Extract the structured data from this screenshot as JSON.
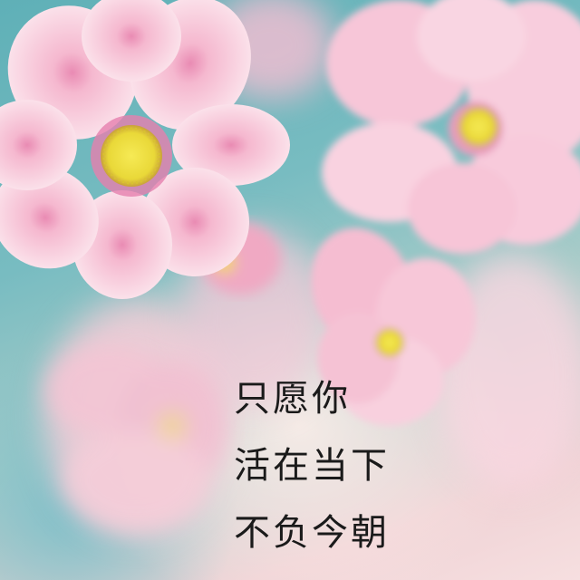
{
  "caption": {
    "lines": [
      "只愿你",
      "活在当下",
      "不负今朝"
    ]
  },
  "colors": {
    "background_teal": "#6fb2bb",
    "petal_pink": "#f7c3d6",
    "petal_light": "#fbe0ea",
    "flower_center": "#f2e64a",
    "text": "#1a1a1a"
  }
}
